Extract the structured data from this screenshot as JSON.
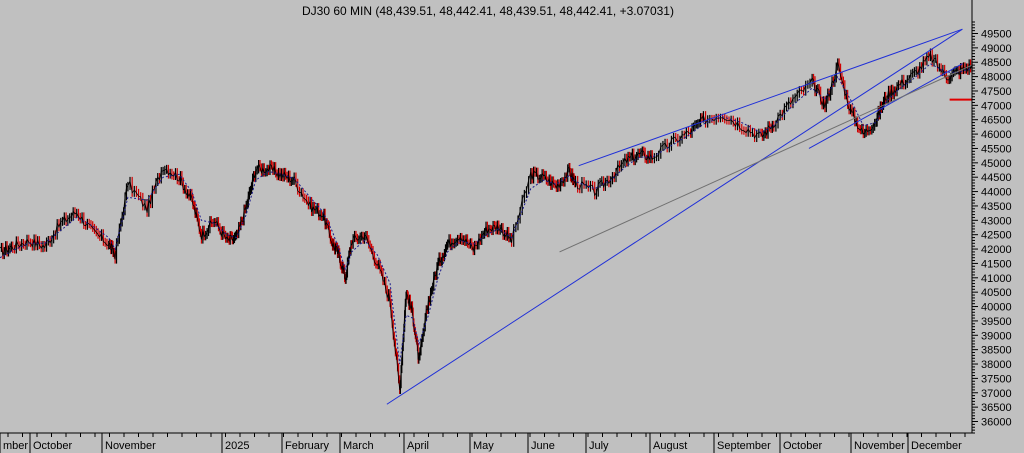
{
  "chart_data": {
    "type": "line",
    "title": "DJ30 60 MIN (48,439.51, 48,442.41, 48,439.51, 48,442.41, +3.07031)",
    "ylim": [
      35600,
      49900
    ],
    "y_ticks": [
      36000,
      36500,
      37000,
      37500,
      38000,
      38500,
      39000,
      39500,
      40000,
      40500,
      41000,
      41500,
      42000,
      42500,
      43000,
      43500,
      44000,
      44500,
      45000,
      45500,
      46000,
      46500,
      47000,
      47500,
      48000,
      48500,
      49000,
      49500
    ],
    "month_labels": [
      {
        "label": "mber",
        "x": 0.0
      },
      {
        "label": "October",
        "x": 1.0
      },
      {
        "label": "November",
        "x": 2.0
      },
      {
        "label": "2025",
        "x": 3.0
      },
      {
        "label": "February",
        "x": 4.0
      },
      {
        "label": "March",
        "x": 5.0
      },
      {
        "label": "April",
        "x": 6.0
      },
      {
        "label": "May",
        "x": 7.0
      },
      {
        "label": "June",
        "x": 8.0
      },
      {
        "label": "July",
        "x": 9.0
      },
      {
        "label": "August",
        "x": 10.0
      },
      {
        "label": "September",
        "x": 11.0
      },
      {
        "label": "October",
        "x": 12.0
      },
      {
        "label": "November",
        "x": 13.0
      },
      {
        "label": "December",
        "x": 14.0
      }
    ],
    "x_range": [
      0,
      15.2
    ],
    "series": [
      {
        "type": "candles",
        "color": "#000000",
        "x": [
          0.0,
          0.2,
          0.45,
          0.7,
          0.95,
          1.2,
          1.45,
          1.7,
          1.8,
          2.0,
          2.3,
          2.55,
          2.8,
          3.0,
          3.15,
          3.35,
          3.55,
          3.7,
          3.85,
          4.0,
          4.2,
          4.4,
          4.6,
          4.85,
          5.05,
          5.2,
          5.3,
          5.4,
          5.5,
          5.7,
          5.9,
          6.1,
          6.25,
          6.35,
          6.45,
          6.55,
          6.7,
          6.85,
          7.0,
          7.2,
          7.4,
          7.6,
          7.8,
          8.0,
          8.3,
          8.5,
          8.7,
          8.9,
          9.0,
          9.3,
          9.55,
          9.8,
          10.0,
          10.2,
          10.5,
          10.8,
          11.0,
          11.3,
          11.6,
          11.9,
          12.1,
          12.4,
          12.7,
          12.9,
          13.1,
          13.3,
          13.5,
          13.7,
          13.85,
          14.05,
          14.3,
          14.55,
          14.8,
          15.0,
          15.2
        ],
        "y": [
          41900,
          42100,
          42300,
          42100,
          42900,
          43300,
          42600,
          42200,
          41800,
          44300,
          43400,
          44900,
          44500,
          43700,
          42500,
          43000,
          42300,
          42400,
          43500,
          44800,
          44800,
          44600,
          44400,
          43500,
          43200,
          42200,
          41800,
          41000,
          42300,
          42500,
          41500,
          40200,
          37100,
          40500,
          39800,
          38100,
          40200,
          41500,
          42200,
          42500,
          42000,
          42700,
          42800,
          42300,
          44600,
          44500,
          44200,
          44700,
          44300,
          44000,
          44500,
          45100,
          45300,
          45200,
          45700,
          46100,
          46500,
          46700,
          46300,
          45900,
          46400,
          47200,
          47800,
          47000,
          48400,
          46800,
          46000,
          46500,
          47300,
          47700,
          48100,
          48700,
          48000,
          48200,
          48400
        ]
      },
      {
        "type": "moving-average",
        "style": "dashed",
        "color": "#1a1a8c",
        "x": [
          0.0,
          0.2,
          0.45,
          0.7,
          0.95,
          1.2,
          1.45,
          1.7,
          1.8,
          2.0,
          2.3,
          2.55,
          2.8,
          3.0,
          3.15,
          3.35,
          3.55,
          3.7,
          3.85,
          4.0,
          4.2,
          4.4,
          4.6,
          4.85,
          5.05,
          5.2,
          5.3,
          5.4,
          5.5,
          5.7,
          5.9,
          6.1,
          6.25,
          6.35,
          6.45,
          6.55,
          6.7,
          6.85,
          7.0,
          7.2,
          7.4,
          7.6,
          7.8,
          8.0,
          8.3,
          8.5,
          8.7,
          8.9,
          9.0,
          9.3,
          9.55,
          9.8,
          10.0,
          10.2,
          10.5,
          10.8,
          11.0,
          11.3,
          11.6,
          11.9,
          12.1,
          12.4,
          12.7,
          12.9,
          13.1,
          13.3,
          13.5,
          13.7,
          13.85,
          14.05,
          14.3,
          14.55,
          14.8,
          15.0,
          15.2
        ],
        "y": [
          41700,
          41950,
          42200,
          42200,
          42650,
          43100,
          42800,
          42400,
          42000,
          43800,
          43700,
          44500,
          44600,
          44000,
          43000,
          42900,
          42500,
          42400,
          43200,
          44400,
          44700,
          44600,
          44450,
          43800,
          43300,
          42600,
          42000,
          41300,
          41900,
          42300,
          41800,
          40800,
          38000,
          39700,
          39600,
          38700,
          39700,
          41000,
          41900,
          42300,
          42150,
          42500,
          42700,
          42400,
          44100,
          44400,
          44250,
          44550,
          44350,
          44100,
          44400,
          44900,
          45200,
          45200,
          45600,
          46000,
          46350,
          46600,
          46400,
          46050,
          46300,
          47000,
          47600,
          47200,
          48000,
          47200,
          46300,
          46400,
          47100,
          47550,
          47950,
          48450,
          48150,
          48150,
          48300
        ]
      },
      {
        "type": "trendline",
        "color": "#1f2fd8",
        "x": [
          6.05,
          15.05
        ],
        "y": [
          36600,
          49650
        ]
      },
      {
        "type": "trendline",
        "color": "#1f2fd8",
        "x": [
          9.05,
          15.05
        ],
        "y": [
          44900,
          49650
        ]
      },
      {
        "type": "trendline",
        "color": "#1f2fd8",
        "x": [
          12.65,
          15.05
        ],
        "y": [
          45500,
          48450
        ]
      },
      {
        "type": "trendline",
        "color": "#707070",
        "x": [
          8.75,
          15.2
        ],
        "y": [
          41900,
          48400
        ]
      },
      {
        "type": "level-line",
        "color": "#e00000",
        "x": [
          14.85,
          15.2
        ],
        "y": [
          47200,
          47200
        ]
      }
    ],
    "grid": false,
    "legend": "none"
  }
}
